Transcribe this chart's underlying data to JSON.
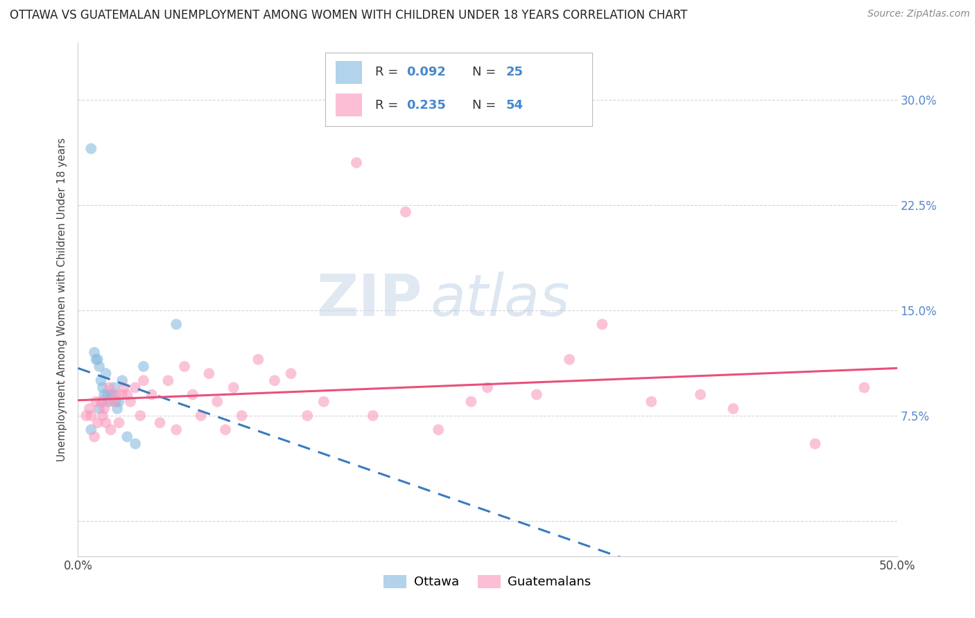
{
  "title": "OTTAWA VS GUATEMALAN UNEMPLOYMENT AMONG WOMEN WITH CHILDREN UNDER 18 YEARS CORRELATION CHART",
  "source": "Source: ZipAtlas.com",
  "ylabel": "Unemployment Among Women with Children Under 18 years",
  "xlim": [
    0.0,
    0.5
  ],
  "ylim": [
    -0.025,
    0.34
  ],
  "watermark_zip": "ZIP",
  "watermark_atlas": "atlas",
  "legend_R1": "R = 0.092",
  "legend_N1": "N = 25",
  "legend_R2": "R = 0.235",
  "legend_N2": "N = 54",
  "ottawa_color": "#89bcdf",
  "guatemalan_color": "#f99bbf",
  "ottawa_line_color": "#3a7bbf",
  "guatemalan_line_color": "#e8507a",
  "ottawa_x": [
    0.008,
    0.01,
    0.011,
    0.012,
    0.013,
    0.014,
    0.015,
    0.015,
    0.016,
    0.017,
    0.018,
    0.019,
    0.02,
    0.021,
    0.022,
    0.023,
    0.024,
    0.025,
    0.027,
    0.03,
    0.035,
    0.04,
    0.06,
    0.008,
    0.013
  ],
  "ottawa_y": [
    0.265,
    0.12,
    0.115,
    0.115,
    0.11,
    0.1,
    0.095,
    0.085,
    0.09,
    0.105,
    0.09,
    0.085,
    0.09,
    0.09,
    0.095,
    0.085,
    0.08,
    0.085,
    0.1,
    0.06,
    0.055,
    0.11,
    0.14,
    0.065,
    0.08
  ],
  "guatemalan_x": [
    0.005,
    0.007,
    0.008,
    0.01,
    0.011,
    0.012,
    0.014,
    0.015,
    0.016,
    0.017,
    0.018,
    0.019,
    0.02,
    0.022,
    0.023,
    0.025,
    0.027,
    0.028,
    0.03,
    0.032,
    0.035,
    0.038,
    0.04,
    0.045,
    0.05,
    0.055,
    0.06,
    0.065,
    0.07,
    0.075,
    0.08,
    0.085,
    0.09,
    0.095,
    0.1,
    0.11,
    0.12,
    0.13,
    0.14,
    0.15,
    0.17,
    0.18,
    0.2,
    0.22,
    0.24,
    0.25,
    0.28,
    0.3,
    0.32,
    0.35,
    0.38,
    0.4,
    0.45,
    0.48
  ],
  "guatemalan_y": [
    0.075,
    0.08,
    0.075,
    0.06,
    0.085,
    0.07,
    0.085,
    0.075,
    0.08,
    0.07,
    0.085,
    0.095,
    0.065,
    0.085,
    0.09,
    0.07,
    0.09,
    0.095,
    0.09,
    0.085,
    0.095,
    0.075,
    0.1,
    0.09,
    0.07,
    0.1,
    0.065,
    0.11,
    0.09,
    0.075,
    0.105,
    0.085,
    0.065,
    0.095,
    0.075,
    0.115,
    0.1,
    0.105,
    0.075,
    0.085,
    0.255,
    0.075,
    0.22,
    0.065,
    0.085,
    0.095,
    0.09,
    0.115,
    0.14,
    0.085,
    0.09,
    0.08,
    0.055,
    0.095
  ],
  "title_fontsize": 12,
  "source_fontsize": 10,
  "axis_label_fontsize": 11,
  "tick_fontsize": 12,
  "legend_fontsize": 13
}
